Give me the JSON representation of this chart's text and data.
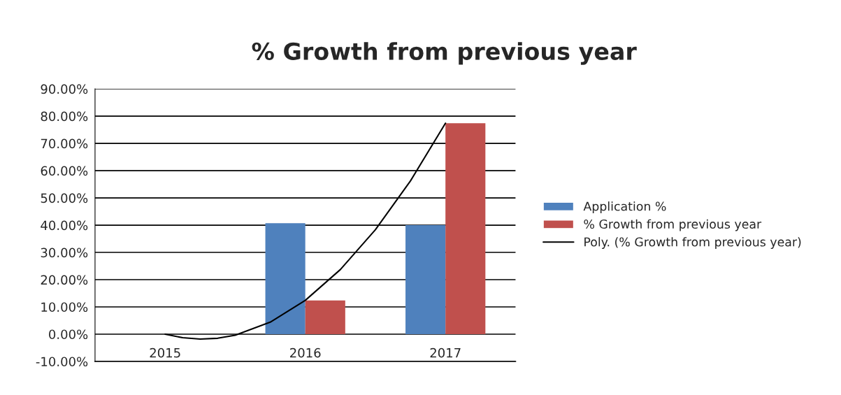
{
  "chart_data": {
    "type": "bar",
    "title": "% Growth from previous year",
    "x": [
      2015,
      2016,
      2017
    ],
    "series": [
      {
        "name": "Application %",
        "color": "#4f81bd",
        "values": [
          0,
          40.7,
          40.0
        ]
      },
      {
        "name": "% Growth from previous year",
        "color": "#c0504d",
        "values": [
          0,
          12.4,
          77.4
        ]
      },
      {
        "name": "Poly. (% Growth from previous year)",
        "type": "line",
        "color": "#000000",
        "x": [
          2015,
          2015.125,
          2015.25,
          2015.375,
          2015.5,
          2015.75,
          2016,
          2016.25,
          2016.5,
          2016.75,
          2017
        ],
        "values": [
          0,
          -1.3,
          -1.8,
          -1.5,
          -0.4,
          4.4,
          12.4,
          23.7,
          38.3,
          56.2,
          77.4
        ]
      }
    ],
    "xlim": [
      2014.5,
      2017.5
    ],
    "xticks": [
      2015,
      2016,
      2017
    ],
    "ylim": [
      -10,
      90
    ],
    "yticks": [
      {
        "value": -10,
        "label": "-10.00%"
      },
      {
        "value": 0,
        "label": "0.00%"
      },
      {
        "value": 10,
        "label": "10.00%"
      },
      {
        "value": 20,
        "label": "20.00%"
      },
      {
        "value": 30,
        "label": "30.00%"
      },
      {
        "value": 40,
        "label": "40.00%"
      },
      {
        "value": 50,
        "label": "50.00%"
      },
      {
        "value": 60,
        "label": "60.00%"
      },
      {
        "value": 70,
        "label": "70.00%"
      },
      {
        "value": 80,
        "label": "80.00%"
      },
      {
        "value": 90,
        "label": "90.00%"
      }
    ],
    "grid": "y",
    "legend": "right"
  }
}
